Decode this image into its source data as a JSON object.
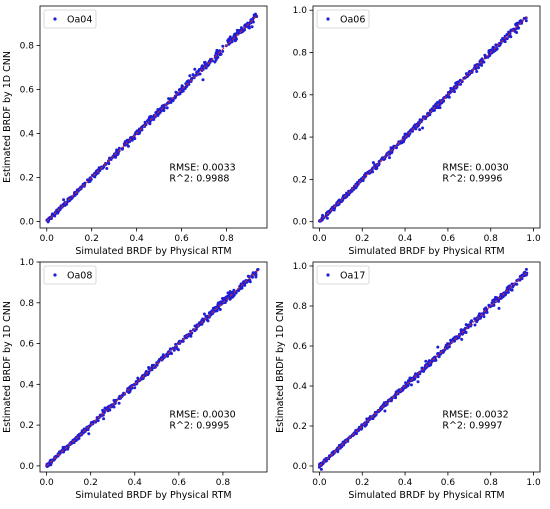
{
  "colors": {
    "points": "#1f1fd6",
    "fit_line": "#d62728",
    "legend_marker": "#1f1fd6"
  },
  "chart_data": [
    {
      "type": "scatter",
      "legend": "Oa04",
      "legend_position": "top-left",
      "xlabel": "Simulated BRDF by Physical RTM",
      "ylabel": "Estimated BRDF by 1D CNN",
      "xlim": [
        -0.03,
        0.98
      ],
      "ylim": [
        -0.03,
        0.98
      ],
      "xticks": [
        "0.0",
        "0.2",
        "0.4",
        "0.6",
        "0.8"
      ],
      "yticks": [
        "0.0",
        "0.2",
        "0.4",
        "0.6",
        "0.8"
      ],
      "tick_values": [
        0,
        0.2,
        0.4,
        0.6,
        0.8
      ],
      "fit_line": [
        [
          0,
          0
        ],
        [
          0.94,
          0.94
        ]
      ],
      "data_range": [
        0.0,
        0.94
      ],
      "annotations": {
        "rmse": "RMSE: 0.0033",
        "r2": "R^2: 0.9988"
      }
    },
    {
      "type": "scatter",
      "legend": "Oa06",
      "legend_position": "top-left",
      "xlabel": "Simulated BRDF by Physical RTM",
      "ylabel": "",
      "xlim": [
        -0.03,
        1.03
      ],
      "ylim": [
        -0.03,
        1.02
      ],
      "xticks": [
        "0.0",
        "0.2",
        "0.4",
        "0.6",
        "0.8",
        "1.0"
      ],
      "yticks": [
        "0.0",
        "0.2",
        "0.4",
        "0.6",
        "0.8",
        "1.0"
      ],
      "tick_values": [
        0,
        0.2,
        0.4,
        0.6,
        0.8,
        1.0
      ],
      "fit_line": [
        [
          0,
          0
        ],
        [
          0.97,
          0.97
        ]
      ],
      "data_range": [
        0.0,
        0.97
      ],
      "annotations": {
        "rmse": "RMSE: 0.0030",
        "r2": "R^2: 0.9996"
      }
    },
    {
      "type": "scatter",
      "legend": "Oa08",
      "legend_position": "top-left",
      "xlabel": "Simulated BRDF by Physical RTM",
      "ylabel": "Estimated BRDF by 1D CNN",
      "xlim": [
        -0.03,
        1.0
      ],
      "ylim": [
        -0.03,
        1.0
      ],
      "xticks": [
        "0.0",
        "0.2",
        "0.4",
        "0.6",
        "0.8"
      ],
      "yticks": [
        "0.0",
        "0.2",
        "0.4",
        "0.6",
        "0.8",
        "1.0"
      ],
      "tick_values": [
        0,
        0.2,
        0.4,
        0.6,
        0.8,
        1.0
      ],
      "fit_line": [
        [
          0,
          0
        ],
        [
          0.96,
          0.96
        ]
      ],
      "data_range": [
        0.0,
        0.96
      ],
      "annotations": {
        "rmse": "RMSE: 0.0030",
        "r2": "R^2: 0.9995"
      }
    },
    {
      "type": "scatter",
      "legend": "Oa17",
      "legend_position": "top-left",
      "xlabel": "Simulated BRDF by Physical RTM",
      "ylabel": "Estimated BRDF by 1D CNN",
      "xlim": [
        -0.03,
        1.03
      ],
      "ylim": [
        -0.03,
        1.02
      ],
      "xticks": [
        "0.0",
        "0.2",
        "0.4",
        "0.6",
        "0.8",
        "1.0"
      ],
      "yticks": [
        "0.0",
        "0.2",
        "0.4",
        "0.6",
        "0.8",
        "1.0"
      ],
      "tick_values": [
        0,
        0.2,
        0.4,
        0.6,
        0.8,
        1.0
      ],
      "fit_line": [
        [
          0,
          0
        ],
        [
          0.97,
          0.97
        ]
      ],
      "data_range": [
        0.0,
        0.97
      ],
      "annotations": {
        "rmse": "RMSE: 0.0032",
        "r2": "R^2: 0.9997"
      }
    }
  ]
}
